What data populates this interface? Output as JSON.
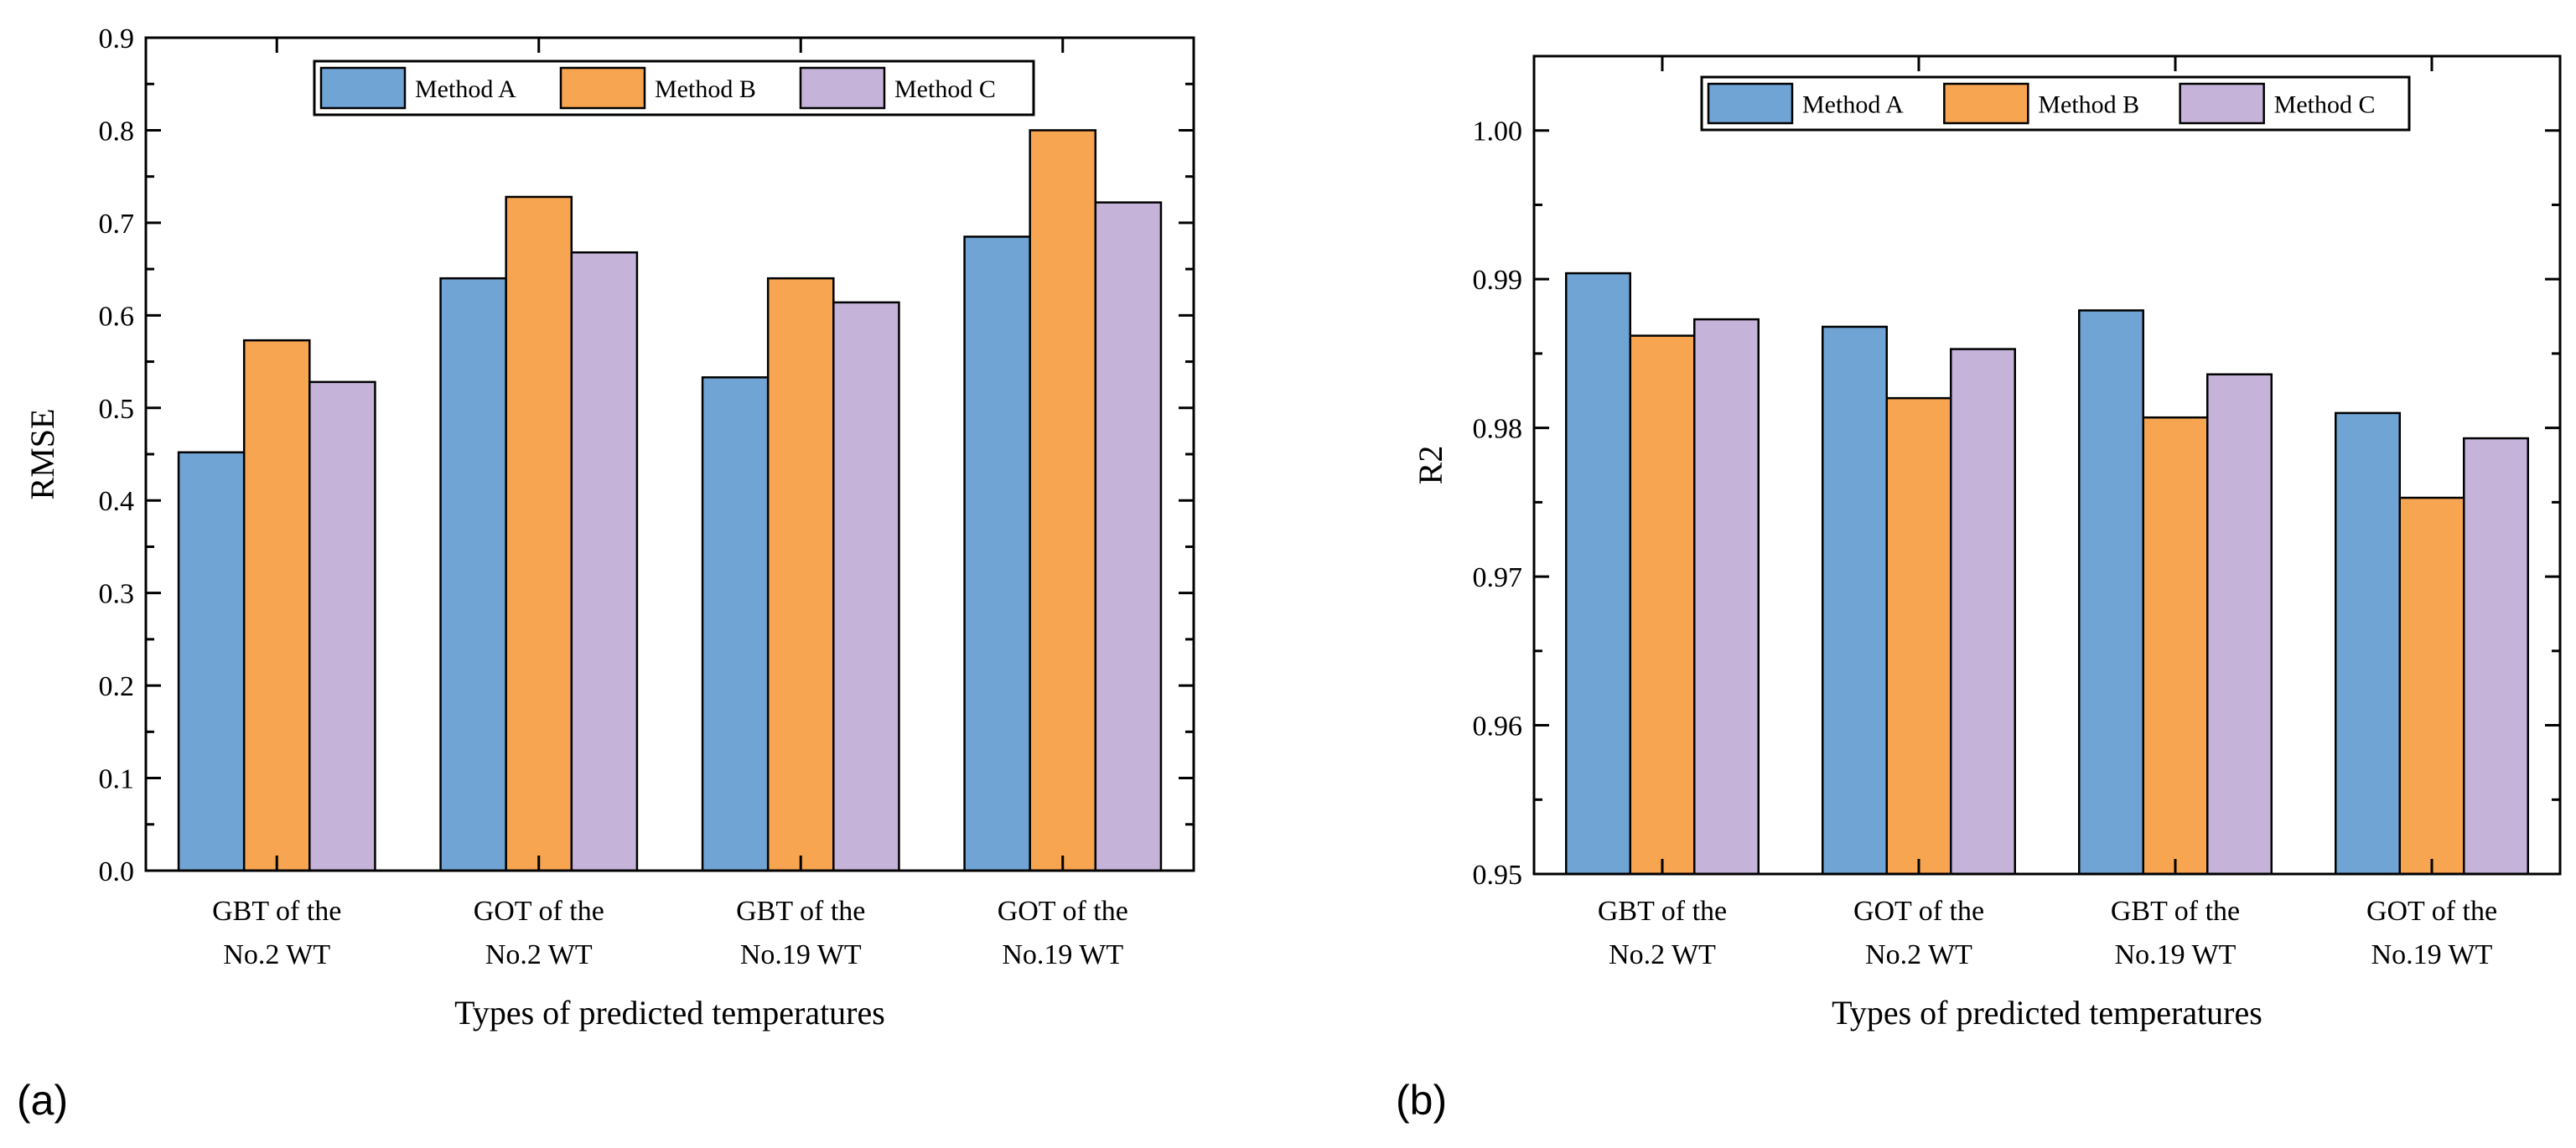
{
  "chart_data": [
    {
      "type": "bar",
      "panel_label": "(a)",
      "categories": [
        [
          "GBT of the",
          "No.2 WT"
        ],
        [
          "GOT of the",
          "No.2 WT"
        ],
        [
          "GBT of the",
          "No.19 WT"
        ],
        [
          "GOT of the",
          "No.19 WT"
        ]
      ],
      "series": [
        {
          "name": "Method A",
          "color": "#6fa4d4",
          "values": [
            0.452,
            0.64,
            0.533,
            0.685
          ]
        },
        {
          "name": "Method B",
          "color": "#f7a551",
          "values": [
            0.573,
            0.728,
            0.64,
            0.8
          ]
        },
        {
          "name": "Method C",
          "color": "#c5b3d9",
          "values": [
            0.528,
            0.668,
            0.614,
            0.722
          ]
        }
      ],
      "xlabel": "Types of predicted temperatures",
      "ylabel": "RMSE",
      "ylim": [
        0.0,
        0.9
      ],
      "yticks": [
        "0.0",
        "0.1",
        "0.2",
        "0.3",
        "0.4",
        "0.5",
        "0.6",
        "0.7",
        "0.8",
        "0.9"
      ],
      "legend_position": "top-center",
      "grid": false
    },
    {
      "type": "bar",
      "panel_label": "(b)",
      "categories": [
        [
          "GBT of the",
          "No.2 WT"
        ],
        [
          "GOT of the",
          "No.2 WT"
        ],
        [
          "GBT of the",
          "No.19 WT"
        ],
        [
          "GOT of the",
          "No.19 WT"
        ]
      ],
      "series": [
        {
          "name": "Method A",
          "color": "#6fa4d4",
          "values": [
            0.9904,
            0.9868,
            0.9879,
            0.981
          ]
        },
        {
          "name": "Method B",
          "color": "#f7a551",
          "values": [
            0.9862,
            0.982,
            0.9807,
            0.9753
          ]
        },
        {
          "name": "Method C",
          "color": "#c5b3d9",
          "values": [
            0.9873,
            0.9853,
            0.9836,
            0.9793
          ]
        }
      ],
      "xlabel": "Types of predicted temperatures",
      "ylabel": "R2",
      "ylim": [
        0.95,
        1.005
      ],
      "yticks": [
        "0.95",
        "0.96",
        "0.97",
        "0.98",
        "0.99",
        "1.00"
      ],
      "legend_position": "top-center",
      "grid": false
    }
  ]
}
